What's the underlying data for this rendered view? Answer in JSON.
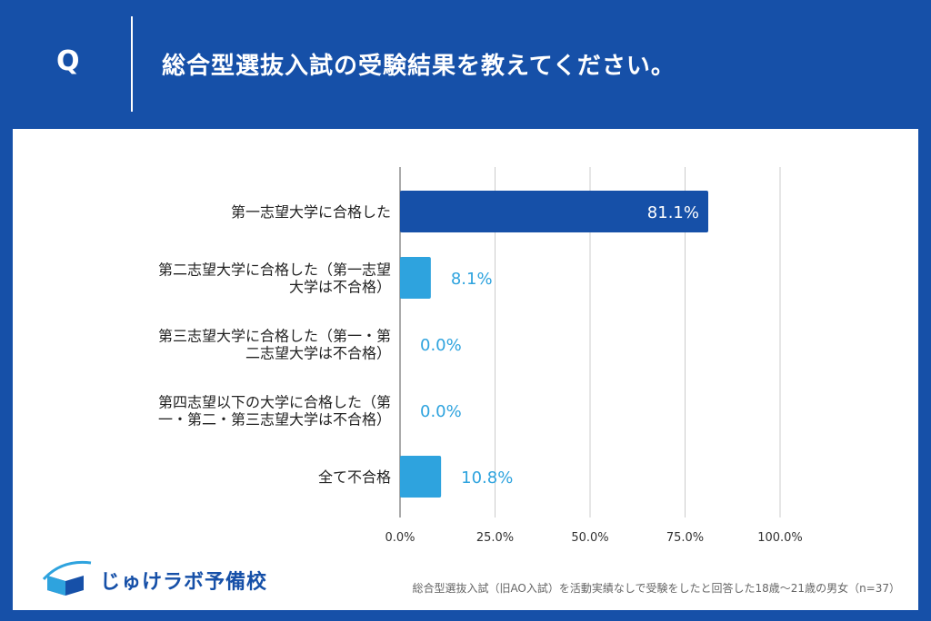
{
  "header": {
    "q_label": "Q",
    "question": "総合型選抜入試の受験結果を教えてください。"
  },
  "chart_data": {
    "type": "bar",
    "orientation": "horizontal",
    "categories": [
      [
        "第一志望大学に合格した"
      ],
      [
        "第二志望大学に合格した（第一志望",
        "大学は不合格）"
      ],
      [
        "第三志望大学に合格した（第一・第",
        "二志望大学は不合格）"
      ],
      [
        "第四志望以下の大学に合格した（第",
        "一・第二・第三志望大学は不合格）"
      ],
      [
        "全て不合格"
      ]
    ],
    "values": [
      81.1,
      8.1,
      0.0,
      0.0,
      10.8
    ],
    "value_labels": [
      "81.1%",
      "8.1%",
      "0.0%",
      "0.0%",
      "10.8%"
    ],
    "highlight_index": 0,
    "xlim": [
      0,
      100
    ],
    "xticks": [
      0,
      25,
      50,
      75,
      100
    ],
    "xtick_labels": [
      "0.0%",
      "25.0%",
      "50.0%",
      "75.0%",
      "100.0%"
    ],
    "grid": true,
    "colors": {
      "highlight": "#1650a8",
      "bar": "#2ea3de",
      "label_inside": "#ffffff",
      "label_outside": "#2ea3de",
      "grid": "#cccccc"
    }
  },
  "footer": {
    "note": "総合型選抜入試（旧AO入試）を活動実績なしで受験をしたと回答した18歳〜21歳の男女（n=37）"
  },
  "logo": {
    "text": "じゅけラボ予備校",
    "icon": "open-book-swoosh-icon"
  }
}
